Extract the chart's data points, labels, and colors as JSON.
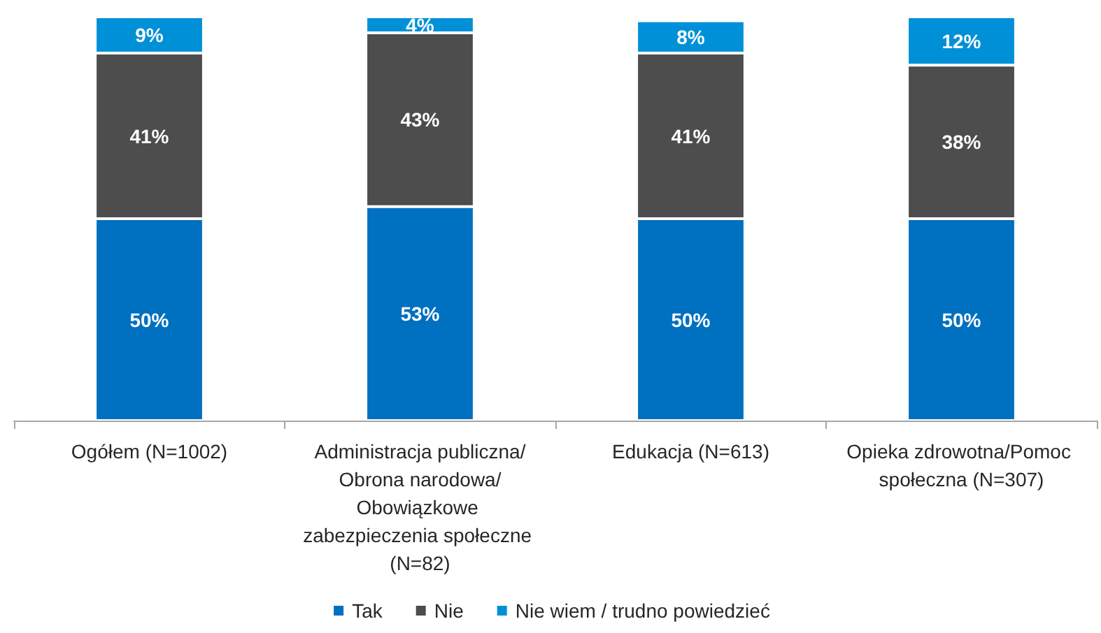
{
  "chart_data": {
    "type": "bar",
    "stacked": true,
    "legend": "bottom",
    "categories": [
      "Ogółem (N=1002)",
      "Administracja publiczna/Obrona narodowa/Obowiązkowe zabezpieczenia społeczne (N=82)",
      "Edukacja (N=613)",
      "Opieka zdrowotna/Pomoc społeczna (N=307)"
    ],
    "series": [
      {
        "name": "Tak",
        "color": "#0070c0",
        "values": [
          50,
          53,
          50,
          50
        ],
        "value_labels": [
          "50%",
          "53%",
          "50%",
          "50%"
        ]
      },
      {
        "name": "Nie",
        "color": "#4d4d4d",
        "values": [
          41,
          43,
          41,
          38
        ],
        "value_labels": [
          "41%",
          "43%",
          "41%",
          "38%"
        ]
      },
      {
        "name": "Nie wiem / trudno powiedzieć",
        "color": "#0090d8",
        "values": [
          9,
          4,
          8,
          12
        ],
        "value_labels": [
          "9%",
          "4%",
          "8%",
          "12%"
        ]
      }
    ]
  }
}
